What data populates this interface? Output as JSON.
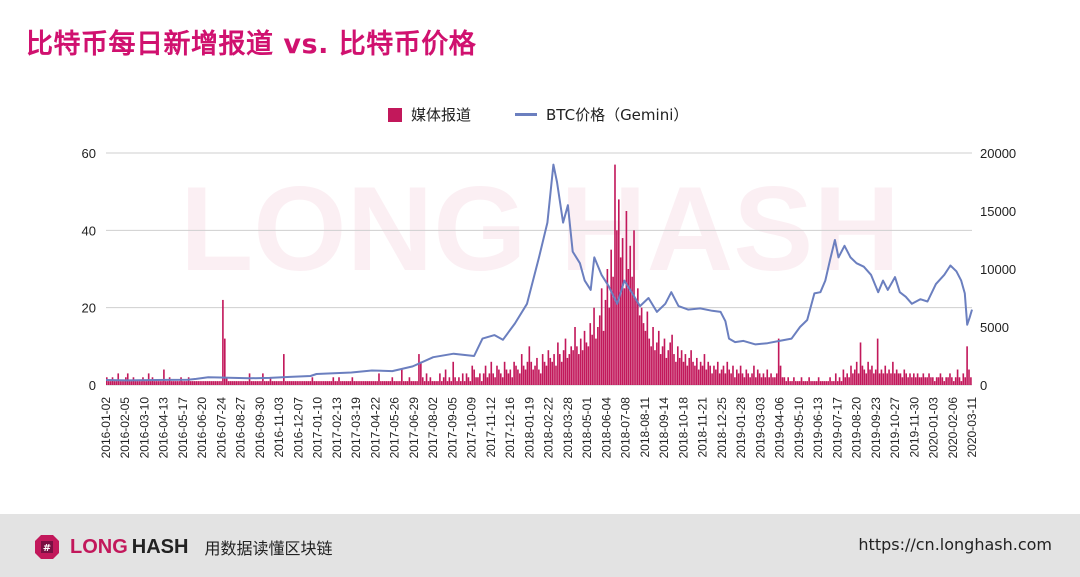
{
  "title": "比特币每日新增报道 vs. 比特币价格",
  "legend": {
    "bars": "媒体报道",
    "line": "BTC价格（Gemini）"
  },
  "watermark": "LONG HASH",
  "colors": {
    "title": "#d0116f",
    "bars": "#c2185b",
    "line": "#6b7fbf",
    "brand": "#c2185b"
  },
  "chart_data": {
    "type": "bar+line",
    "categories_ticks": [
      "2016-01-02",
      "2016-02-05",
      "2016-03-10",
      "2016-04-13",
      "2016-05-17",
      "2016-06-20",
      "2016-07-24",
      "2016-08-27",
      "2016-09-30",
      "2016-11-03",
      "2016-12-07",
      "2017-01-10",
      "2017-02-13",
      "2017-03-19",
      "2017-04-22",
      "2017-05-26",
      "2017-06-29",
      "2017-08-02",
      "2017-09-05",
      "2017-10-09",
      "2017-11-12",
      "2017-12-16",
      "2018-01-19",
      "2018-02-22",
      "2018-03-28",
      "2018-05-01",
      "2018-06-04",
      "2018-07-08",
      "2018-08-11",
      "2018-09-14",
      "2018-10-18",
      "2018-11-21",
      "2018-12-25",
      "2019-01-28",
      "2019-03-03",
      "2019-04-06",
      "2019-05-10",
      "2019-06-13",
      "2019-07-17",
      "2019-08-20",
      "2019-09-23",
      "2019-10-27",
      "2019-11-30",
      "2020-01-03",
      "2020-02-06",
      "2020-03-11"
    ],
    "y_left": {
      "label": "",
      "range": [
        0,
        60
      ],
      "ticks": [
        0,
        20,
        40,
        60
      ]
    },
    "y_right": {
      "label": "",
      "range": [
        0,
        20000
      ],
      "ticks": [
        0,
        5000,
        10000,
        15000,
        20000
      ]
    },
    "series": [
      {
        "name": "媒体报道",
        "type": "bar",
        "axis": "left",
        "values": [
          2,
          1,
          1,
          2,
          1,
          1,
          3,
          1,
          1,
          1,
          2,
          3,
          1,
          1,
          2,
          1,
          1,
          1,
          1,
          2,
          1,
          1,
          3,
          1,
          2,
          1,
          1,
          1,
          1,
          1,
          4,
          1,
          1,
          2,
          1,
          1,
          1,
          1,
          1,
          2,
          1,
          1,
          1,
          2,
          1,
          1,
          1,
          1,
          1,
          1,
          1,
          1,
          1,
          1,
          1,
          1,
          1,
          1,
          1,
          1,
          1,
          22,
          12,
          2,
          1,
          1,
          1,
          1,
          1,
          1,
          1,
          1,
          1,
          1,
          1,
          3,
          1,
          1,
          1,
          1,
          1,
          1,
          3,
          1,
          1,
          1,
          2,
          1,
          1,
          1,
          1,
          1,
          1,
          8,
          1,
          1,
          1,
          1,
          1,
          1,
          1,
          1,
          1,
          1,
          1,
          1,
          1,
          1,
          2,
          1,
          1,
          1,
          1,
          1,
          1,
          1,
          1,
          1,
          1,
          2,
          1,
          1,
          2,
          1,
          1,
          1,
          1,
          1,
          1,
          2,
          1,
          1,
          1,
          1,
          1,
          1,
          1,
          1,
          1,
          1,
          1,
          1,
          1,
          3,
          1,
          1,
          1,
          1,
          1,
          1,
          2,
          1,
          1,
          1,
          1,
          4,
          1,
          1,
          1,
          2,
          1,
          1,
          1,
          1,
          8,
          6,
          2,
          1,
          3,
          1,
          2,
          1,
          1,
          1,
          1,
          3,
          1,
          2,
          4,
          1,
          2,
          1,
          6,
          2,
          1,
          2,
          1,
          3,
          1,
          3,
          2,
          1,
          5,
          4,
          2,
          2,
          3,
          1,
          3,
          5,
          2,
          3,
          6,
          3,
          2,
          5,
          4,
          3,
          2,
          6,
          4,
          3,
          4,
          2,
          6,
          5,
          4,
          3,
          8,
          5,
          4,
          6,
          10,
          6,
          4,
          5,
          7,
          4,
          3,
          8,
          6,
          5,
          9,
          7,
          6,
          8,
          5,
          11,
          8,
          6,
          9,
          12,
          7,
          8,
          10,
          9,
          15,
          10,
          8,
          12,
          9,
          14,
          11,
          10,
          16,
          13,
          20,
          12,
          15,
          18,
          25,
          14,
          22,
          30,
          20,
          35,
          28,
          57,
          40,
          48,
          33,
          38,
          25,
          45,
          30,
          36,
          28,
          40,
          22,
          25,
          18,
          20,
          16,
          14,
          19,
          12,
          10,
          15,
          9,
          11,
          14,
          8,
          10,
          12,
          7,
          9,
          11,
          13,
          8,
          6,
          10,
          7,
          9,
          6,
          8,
          5,
          7,
          9,
          6,
          5,
          7,
          4,
          6,
          5,
          8,
          4,
          6,
          5,
          3,
          5,
          4,
          6,
          3,
          4,
          5,
          3,
          6,
          4,
          3,
          5,
          2,
          4,
          3,
          5,
          3,
          2,
          4,
          3,
          2,
          3,
          5,
          2,
          4,
          3,
          2,
          3,
          2,
          4,
          2,
          3,
          2,
          2,
          3,
          12,
          5,
          2,
          2,
          1,
          2,
          1,
          1,
          2,
          1,
          1,
          1,
          2,
          1,
          1,
          1,
          2,
          1,
          1,
          1,
          1,
          2,
          1,
          1,
          1,
          1,
          1,
          2,
          1,
          1,
          3,
          1,
          2,
          1,
          4,
          2,
          3,
          2,
          5,
          3,
          4,
          6,
          3,
          11,
          5,
          4,
          3,
          6,
          4,
          5,
          3,
          4,
          12,
          3,
          4,
          3,
          5,
          3,
          4,
          3,
          6,
          3,
          4,
          3,
          3,
          2,
          4,
          3,
          2,
          3,
          2,
          3,
          2,
          3,
          2,
          2,
          3,
          2,
          2,
          3,
          2,
          2,
          1,
          2,
          2,
          3,
          2,
          1,
          2,
          2,
          3,
          2,
          1,
          2,
          4,
          2,
          1,
          3,
          2,
          10,
          4,
          2
        ]
      },
      {
        "name": "BTC价格（Gemini）",
        "type": "line",
        "axis": "right",
        "points": [
          [
            0,
            430
          ],
          [
            34,
            400
          ],
          [
            68,
            420
          ],
          [
            102,
            440
          ],
          [
            136,
            460
          ],
          [
            150,
            530
          ],
          [
            170,
            670
          ],
          [
            190,
            650
          ],
          [
            204,
            620
          ],
          [
            238,
            580
          ],
          [
            272,
            610
          ],
          [
            306,
            700
          ],
          [
            340,
            780
          ],
          [
            350,
            950
          ],
          [
            374,
            1000
          ],
          [
            408,
            1080
          ],
          [
            442,
            1250
          ],
          [
            476,
            1200
          ],
          [
            510,
            1600
          ],
          [
            544,
            2400
          ],
          [
            578,
            2700
          ],
          [
            612,
            2500
          ],
          [
            626,
            4000
          ],
          [
            646,
            4300
          ],
          [
            660,
            3900
          ],
          [
            680,
            5300
          ],
          [
            700,
            7000
          ],
          [
            720,
            11000
          ],
          [
            734,
            14000
          ],
          [
            744,
            19000
          ],
          [
            750,
            17500
          ],
          [
            760,
            14000
          ],
          [
            768,
            15500
          ],
          [
            776,
            11500
          ],
          [
            788,
            10500
          ],
          [
            796,
            9000
          ],
          [
            806,
            8200
          ],
          [
            812,
            11000
          ],
          [
            824,
            9500
          ],
          [
            836,
            8500
          ],
          [
            850,
            7000
          ],
          [
            862,
            9000
          ],
          [
            874,
            8000
          ],
          [
            888,
            6800
          ],
          [
            902,
            7500
          ],
          [
            916,
            6300
          ],
          [
            930,
            7000
          ],
          [
            940,
            8000
          ],
          [
            952,
            6800
          ],
          [
            968,
            6500
          ],
          [
            988,
            6600
          ],
          [
            1008,
            6400
          ],
          [
            1022,
            6300
          ],
          [
            1030,
            5500
          ],
          [
            1036,
            4000
          ],
          [
            1046,
            3700
          ],
          [
            1060,
            3800
          ],
          [
            1080,
            3500
          ],
          [
            1100,
            3600
          ],
          [
            1120,
            3800
          ],
          [
            1140,
            4000
          ],
          [
            1154,
            5000
          ],
          [
            1166,
            5600
          ],
          [
            1178,
            7900
          ],
          [
            1188,
            8000
          ],
          [
            1196,
            9000
          ],
          [
            1204,
            10800
          ],
          [
            1212,
            12500
          ],
          [
            1218,
            11000
          ],
          [
            1228,
            12000
          ],
          [
            1238,
            11000
          ],
          [
            1248,
            10500
          ],
          [
            1260,
            10200
          ],
          [
            1272,
            9500
          ],
          [
            1284,
            8000
          ],
          [
            1292,
            9000
          ],
          [
            1300,
            8200
          ],
          [
            1312,
            9300
          ],
          [
            1320,
            8000
          ],
          [
            1330,
            7600
          ],
          [
            1340,
            7000
          ],
          [
            1354,
            7400
          ],
          [
            1366,
            7200
          ],
          [
            1380,
            8700
          ],
          [
            1394,
            9500
          ],
          [
            1404,
            10300
          ],
          [
            1414,
            9800
          ],
          [
            1422,
            9000
          ],
          [
            1428,
            7900
          ],
          [
            1432,
            5200
          ],
          [
            1436,
            5800
          ],
          [
            1440,
            6500
          ]
        ],
        "x_range": [
          0,
          1440
        ]
      }
    ],
    "grid": true,
    "legend_position": "top"
  },
  "footer": {
    "brand_a": "LONG",
    "brand_b": "HASH",
    "slogan": "用数据读懂区块链",
    "url": "https://cn.longhash.com"
  }
}
